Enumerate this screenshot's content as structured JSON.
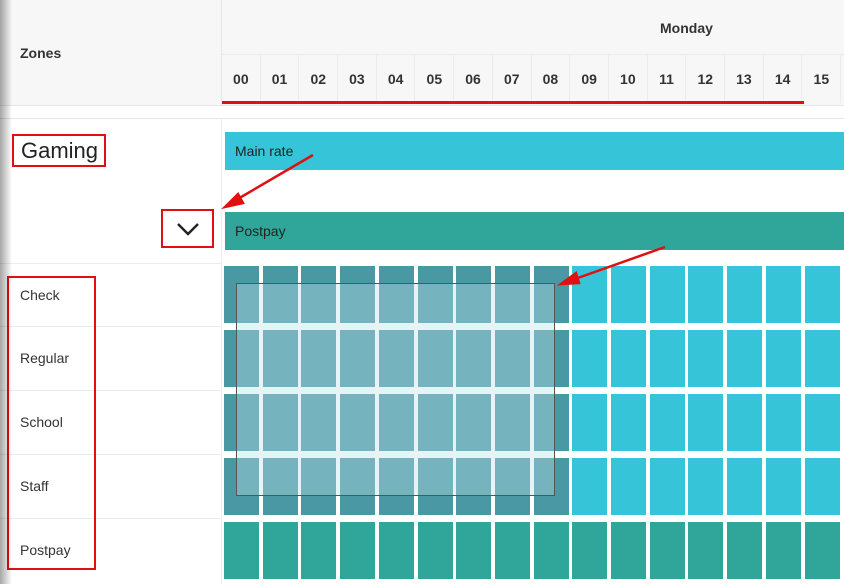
{
  "header": {
    "zones_label": "Zones",
    "day_label": "Monday",
    "hours": [
      "00",
      "01",
      "02",
      "03",
      "04",
      "05",
      "06",
      "07",
      "08",
      "09",
      "10",
      "11",
      "12",
      "13",
      "14",
      "15"
    ]
  },
  "zone_group": {
    "title": "Gaming",
    "toggle_icon": "chevron-down-icon",
    "rate_bars": [
      {
        "label": "Main rate",
        "color": "#36c5d8"
      },
      {
        "label": "Postpay",
        "color": "#30a59a"
      }
    ]
  },
  "rows": [
    {
      "label": "Check",
      "type": "rate"
    },
    {
      "label": "Regular",
      "type": "rate"
    },
    {
      "label": "School",
      "type": "rate"
    },
    {
      "label": "Staff",
      "type": "rate"
    },
    {
      "label": "Postpay",
      "type": "postpay"
    }
  ],
  "colors": {
    "main_rate": "#36c5d8",
    "postpay": "#30a59a",
    "selected": "#4a98a4",
    "annotation_red": "#e01010"
  }
}
